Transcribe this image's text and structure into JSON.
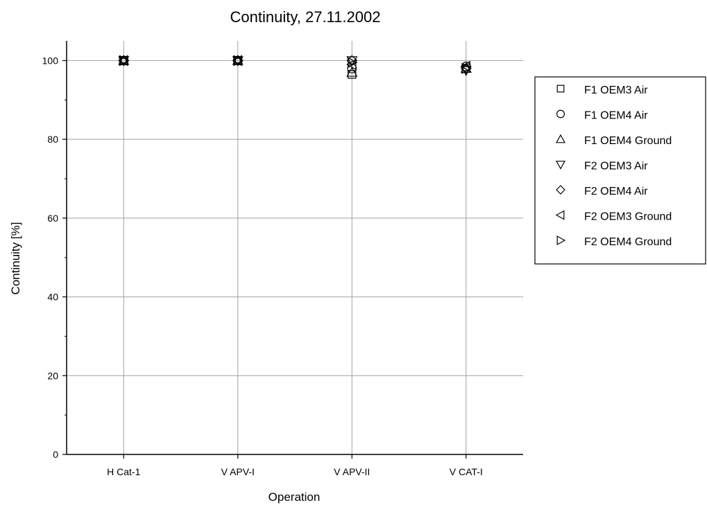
{
  "chart_data": {
    "type": "scatter",
    "title": "Continuity, 27.11.2002",
    "xlabel": "Operation",
    "ylabel": "Continuity [%]",
    "categories": [
      "H Cat-1",
      "V APV-I",
      "V APV-II",
      "V CAT-I"
    ],
    "ylim": [
      0,
      105
    ],
    "yticks": [
      0,
      20,
      40,
      60,
      80,
      100
    ],
    "grid": true,
    "legend_position": "right",
    "series": [
      {
        "name": "F1 OEM3 Air",
        "marker": "square",
        "values": [
          100,
          100,
          96.5,
          98
        ]
      },
      {
        "name": "F1 OEM4 Air",
        "marker": "circle",
        "values": [
          100,
          100,
          98,
          98.5
        ]
      },
      {
        "name": "F1 OEM4 Ground",
        "marker": "triangle-up",
        "values": [
          100,
          100,
          97,
          98
        ]
      },
      {
        "name": "F2 OEM3 Air",
        "marker": "triangle-down",
        "values": [
          100,
          100,
          100,
          97.5
        ]
      },
      {
        "name": "F2 OEM4 Air",
        "marker": "diamond",
        "values": [
          100,
          100,
          100,
          98
        ]
      },
      {
        "name": "F2 OEM3 Ground",
        "marker": "triangle-left",
        "values": [
          100,
          100,
          99,
          98.5
        ]
      },
      {
        "name": "F2 OEM4 Ground",
        "marker": "triangle-right",
        "values": [
          100,
          100,
          99.5,
          98
        ]
      }
    ],
    "colors": {
      "marker": "#000000",
      "grid": "#a0a0a0",
      "axis": "#000000"
    }
  }
}
